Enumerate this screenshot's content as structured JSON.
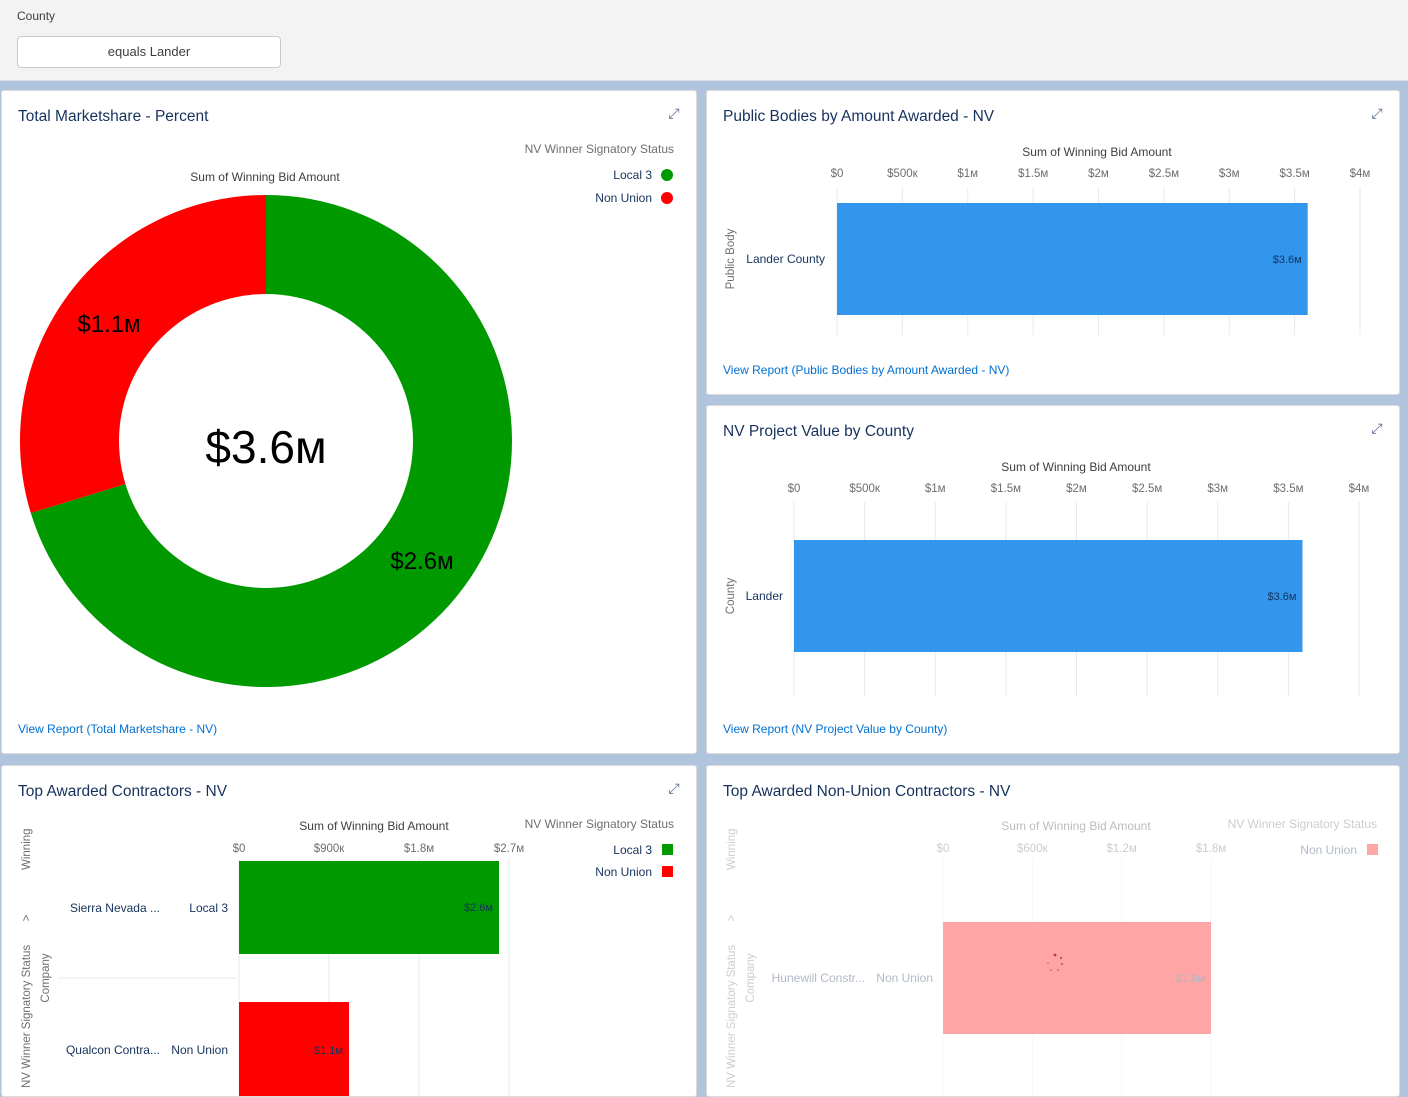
{
  "filter": {
    "label": "County",
    "value": "equals Lander"
  },
  "cards": {
    "marketshare": {
      "title": "Total Marketshare - Percent",
      "subtitle": "Sum of Winning Bid Amount",
      "legend_title": "NV Winner Signatory Status",
      "legend": [
        {
          "name": "Local 3",
          "color": "#009a00"
        },
        {
          "name": "Non Union",
          "color": "#ff0000"
        }
      ],
      "total": "$3.6м",
      "slice_labels": [
        "$2.6м",
        "$1.1м"
      ],
      "link": "View Report (Total Marketshare - NV)"
    },
    "public_bodies": {
      "title": "Public Bodies by Amount Awarded - NV",
      "axis_title": "Sum of Winning Bid Amount",
      "ticks": [
        "$0",
        "$500к",
        "$1м",
        "$1.5м",
        "$2м",
        "$2.5м",
        "$3м",
        "$3.5м",
        "$4м"
      ],
      "y_title": "Public Body",
      "category": "Lander County",
      "bar_label": "$3.6м",
      "link": "View Report (Public Bodies by Amount Awarded - NV)"
    },
    "county": {
      "title": "NV Project Value by County",
      "axis_title": "Sum of Winning Bid Amount",
      "ticks": [
        "$0",
        "$500к",
        "$1м",
        "$1.5м",
        "$2м",
        "$2.5м",
        "$3м",
        "$3.5м",
        "$4м"
      ],
      "y_title": "County",
      "category": "Lander",
      "bar_label": "$3.6м",
      "link": "View Report (NV Project Value by County)"
    },
    "top_contractors": {
      "title": "Top Awarded Contractors - NV",
      "axis_title": "Sum of Winning Bid Amount",
      "ticks": [
        "$0",
        "$900к",
        "$1.8м",
        "$2.7м"
      ],
      "legend_title": "NV Winner Signatory Status",
      "legend": [
        {
          "name": "Local 3",
          "color": "#009a00"
        },
        {
          "name": "Non Union",
          "color": "#ff0000"
        }
      ],
      "y_title_1": "NV Winner Signatory Status",
      "y_title_sep": ">",
      "y_title_2": "Winning",
      "y_title_3": "Company",
      "rows": [
        {
          "company": "Sierra Nevada ...",
          "status": "Local 3",
          "label": "$2.6м"
        },
        {
          "company": "Qualcon Contra...",
          "status": "Non Union",
          "label": "$1.1м"
        }
      ]
    },
    "nonunion": {
      "title": "Top Awarded Non-Union Contractors - NV",
      "axis_title": "Sum of Winning Bid Amount",
      "ticks": [
        "$0",
        "$600к",
        "$1.2м",
        "$1.8м"
      ],
      "legend_title": "NV Winner Signatory Status",
      "legend": [
        {
          "name": "Non Union",
          "color": "#ff0000"
        }
      ],
      "y_title_1": "NV Winner Signatory Status",
      "y_title_sep": ">",
      "y_title_2": "Winning",
      "y_title_3": "Company",
      "rows": [
        {
          "company": "Hunewill Constr...",
          "status": "Non Union",
          "label": "$1.8м"
        }
      ]
    }
  },
  "chart_data": [
    {
      "type": "pie",
      "title": "Total Marketshare - Percent",
      "subtitle": "Sum of Winning Bid Amount",
      "categories": [
        "Local 3",
        "Non Union"
      ],
      "values": [
        2.6,
        1.1
      ],
      "unit": "$M",
      "center_total": 3.6,
      "legend_placement": "top-right"
    },
    {
      "type": "bar",
      "title": "Public Bodies by Amount Awarded - NV",
      "categories": [
        "Lander County"
      ],
      "values": [
        3.6
      ],
      "unit": "$M",
      "xlabel": "Sum of Winning Bid Amount",
      "ylabel": "Public Body",
      "xlim": [
        0,
        4
      ]
    },
    {
      "type": "bar",
      "title": "NV Project Value by County",
      "categories": [
        "Lander"
      ],
      "values": [
        3.6
      ],
      "unit": "$M",
      "xlabel": "Sum of Winning Bid Amount",
      "ylabel": "County",
      "xlim": [
        0,
        4
      ]
    },
    {
      "type": "bar",
      "title": "Top Awarded Contractors - NV",
      "categories": [
        "Sierra Nevada ...",
        "Qualcon Contra..."
      ],
      "values": [
        2.6,
        1.1
      ],
      "unit": "$M",
      "series_by_category": [
        "Local 3",
        "Non Union"
      ],
      "xlabel": "Sum of Winning Bid Amount",
      "xlim": [
        0,
        2.7
      ]
    },
    {
      "type": "bar",
      "title": "Top Awarded Non-Union Contractors - NV",
      "categories": [
        "Hunewill Constr..."
      ],
      "values": [
        1.8
      ],
      "unit": "$M",
      "series_by_category": [
        "Non Union"
      ],
      "xlabel": "Sum of Winning Bid Amount",
      "xlim": [
        0,
        1.8
      ]
    }
  ]
}
